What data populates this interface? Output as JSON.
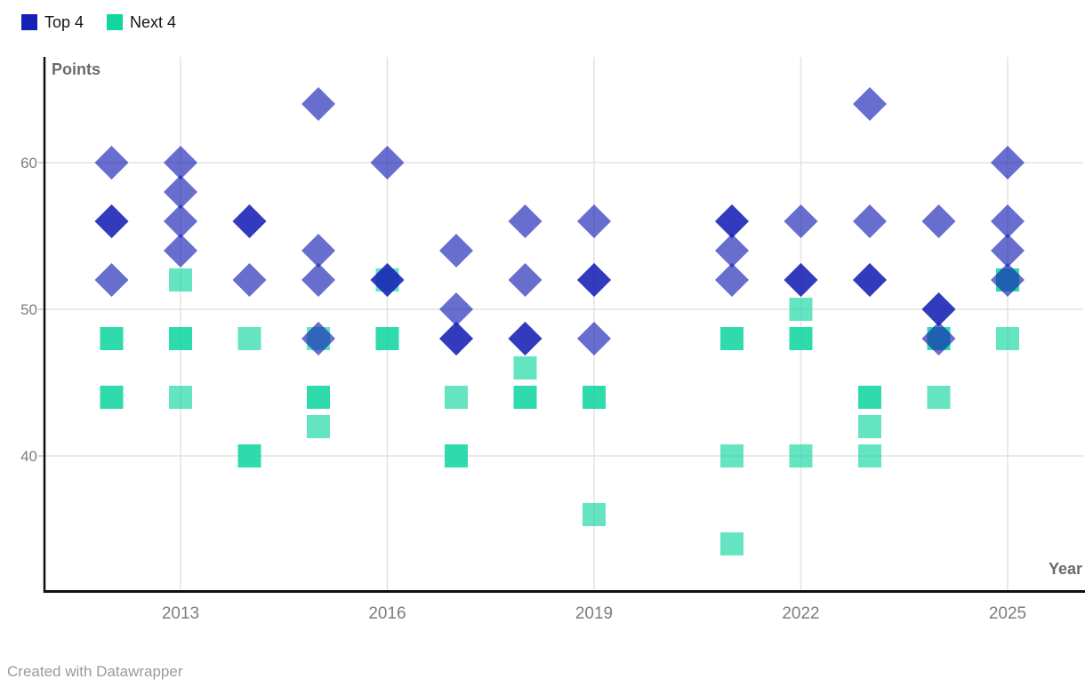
{
  "chart_data": {
    "type": "scatter",
    "title": "",
    "xlabel": "Year",
    "ylabel": "Points",
    "x_ticks": [
      2013,
      2016,
      2019,
      2022,
      2025
    ],
    "y_ticks": [
      60,
      50,
      40
    ],
    "xlim": [
      2011,
      2026.1
    ],
    "ylim": [
      30.8,
      67.2
    ],
    "grid": true,
    "legend_position": "top-left",
    "marker_opacity": 0.65,
    "point_format": "[year, points, overlap_count] — overlap_count markers are drawn on the same spot, so stacks of 2 look darker",
    "series": [
      {
        "name": "Top 4",
        "color": "#1520b4",
        "marker": "diamond",
        "points": [
          [
            2012,
            60,
            1
          ],
          [
            2012,
            56,
            2
          ],
          [
            2012,
            52,
            1
          ],
          [
            2013,
            60,
            1
          ],
          [
            2013,
            58,
            1
          ],
          [
            2013,
            56,
            1
          ],
          [
            2013,
            54,
            1
          ],
          [
            2014,
            56,
            2
          ],
          [
            2014,
            52,
            1
          ],
          [
            2015,
            64,
            1
          ],
          [
            2015,
            54,
            1
          ],
          [
            2015,
            52,
            1
          ],
          [
            2015,
            48,
            1
          ],
          [
            2016,
            60,
            1
          ],
          [
            2016,
            52,
            2
          ],
          [
            2017,
            54,
            1
          ],
          [
            2017,
            50,
            1
          ],
          [
            2017,
            48,
            2
          ],
          [
            2018,
            56,
            1
          ],
          [
            2018,
            52,
            1
          ],
          [
            2018,
            48,
            2
          ],
          [
            2019,
            56,
            1
          ],
          [
            2019,
            52,
            2
          ],
          [
            2019,
            48,
            1
          ],
          [
            2021,
            56,
            2
          ],
          [
            2021,
            54,
            1
          ],
          [
            2021,
            52,
            1
          ],
          [
            2022,
            56,
            1
          ],
          [
            2022,
            52,
            2
          ],
          [
            2023,
            64,
            1
          ],
          [
            2023,
            56,
            1
          ],
          [
            2023,
            52,
            2
          ],
          [
            2024,
            56,
            1
          ],
          [
            2024,
            50,
            2
          ],
          [
            2024,
            48,
            1
          ],
          [
            2025,
            60,
            1
          ],
          [
            2025,
            56,
            1
          ],
          [
            2025,
            54,
            1
          ],
          [
            2025,
            52,
            1
          ]
        ]
      },
      {
        "name": "Next 4",
        "color": "#12d5a2",
        "marker": "square",
        "points": [
          [
            2012,
            48,
            2
          ],
          [
            2012,
            44,
            2
          ],
          [
            2013,
            52,
            1
          ],
          [
            2013,
            48,
            2
          ],
          [
            2013,
            44,
            1
          ],
          [
            2014,
            48,
            1
          ],
          [
            2014,
            40,
            2
          ],
          [
            2015,
            48,
            1
          ],
          [
            2015,
            44,
            2
          ],
          [
            2015,
            42,
            1
          ],
          [
            2016,
            52,
            1
          ],
          [
            2016,
            48,
            2
          ],
          [
            2017,
            44,
            1
          ],
          [
            2017,
            40,
            2
          ],
          [
            2018,
            46,
            1
          ],
          [
            2018,
            44,
            2
          ],
          [
            2019,
            44,
            2
          ],
          [
            2019,
            36,
            1
          ],
          [
            2021,
            48,
            2
          ],
          [
            2021,
            40,
            1
          ],
          [
            2021,
            34,
            1
          ],
          [
            2022,
            50,
            1
          ],
          [
            2022,
            48,
            2
          ],
          [
            2022,
            40,
            1
          ],
          [
            2023,
            44,
            2
          ],
          [
            2023,
            42,
            1
          ],
          [
            2023,
            40,
            1
          ],
          [
            2024,
            48,
            2
          ],
          [
            2024,
            44,
            1
          ],
          [
            2025,
            52,
            2
          ],
          [
            2025,
            48,
            1
          ]
        ]
      }
    ]
  },
  "footer": {
    "attribution": "Created with Datawrapper"
  }
}
